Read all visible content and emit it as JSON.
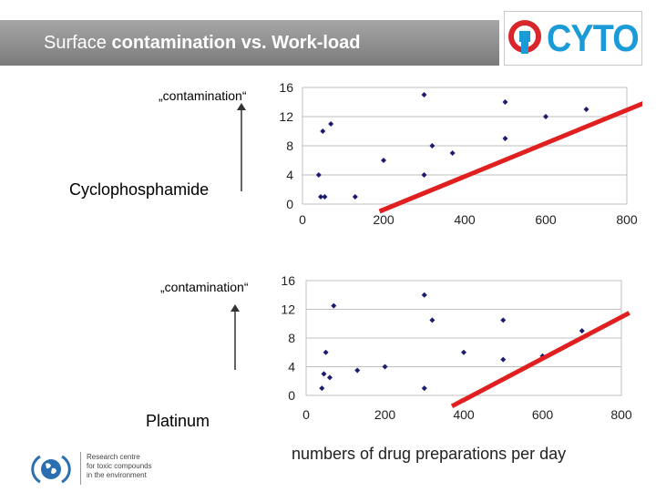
{
  "header": {
    "title_normal": "Surface ",
    "title_bold": "contamination vs. Work-load"
  },
  "logo": {
    "text": "CYTO"
  },
  "labels": {
    "contamination_top": "„contamination“",
    "drug_top": "Cyclophosphamide",
    "contamination_bottom": "„contamination“",
    "drug_bottom": "Platinum",
    "x_caption": "numbers of drug preparations per day"
  },
  "footer": {
    "lines": [
      "Research centre",
      "for toxic compounds",
      "in the environment"
    ]
  },
  "colors": {
    "marker": "#1c1c6e",
    "trend": "#e02020",
    "grid": "#c0c0c0",
    "header": "#8c8c8c",
    "logo_blue": "#1a9bd8",
    "logo_red": "#d8262a"
  },
  "chart_data": [
    {
      "type": "scatter",
      "title": "",
      "xlabel": "",
      "ylabel": "",
      "xlim": [
        0,
        800
      ],
      "ylim": [
        0,
        16
      ],
      "xticks": [
        "0",
        "200",
        "400",
        "600",
        "800"
      ],
      "yticks": [
        "0",
        "4",
        "8",
        "12",
        "16"
      ],
      "grid": true,
      "points": [
        [
          40,
          4
        ],
        [
          45,
          1
        ],
        [
          55,
          1
        ],
        [
          50,
          10
        ],
        [
          70,
          11
        ],
        [
          130,
          1
        ],
        [
          200,
          6
        ],
        [
          300,
          15
        ],
        [
          300,
          4
        ],
        [
          320,
          8
        ],
        [
          370,
          7
        ],
        [
          500,
          14
        ],
        [
          500,
          9
        ],
        [
          600,
          12
        ],
        [
          700,
          13
        ]
      ],
      "trend": [
        [
          190,
          -1
        ],
        [
          870,
          14.5
        ]
      ]
    },
    {
      "type": "scatter",
      "title": "",
      "xlabel": "",
      "ylabel": "",
      "xlim": [
        0,
        800
      ],
      "ylim": [
        0,
        16
      ],
      "xticks": [
        "0",
        "200",
        "400",
        "600",
        "800"
      ],
      "yticks": [
        "0",
        "4",
        "8",
        "12",
        "16"
      ],
      "grid": true,
      "points": [
        [
          40,
          1
        ],
        [
          45,
          3
        ],
        [
          50,
          6
        ],
        [
          60,
          2.5
        ],
        [
          70,
          12.5
        ],
        [
          130,
          3.5
        ],
        [
          200,
          4
        ],
        [
          300,
          14
        ],
        [
          300,
          1
        ],
        [
          320,
          10.5
        ],
        [
          400,
          6
        ],
        [
          500,
          10.5
        ],
        [
          500,
          5
        ],
        [
          600,
          5.5
        ],
        [
          700,
          9
        ]
      ],
      "trend": [
        [
          370,
          -1.5
        ],
        [
          820,
          11.5
        ]
      ]
    }
  ]
}
